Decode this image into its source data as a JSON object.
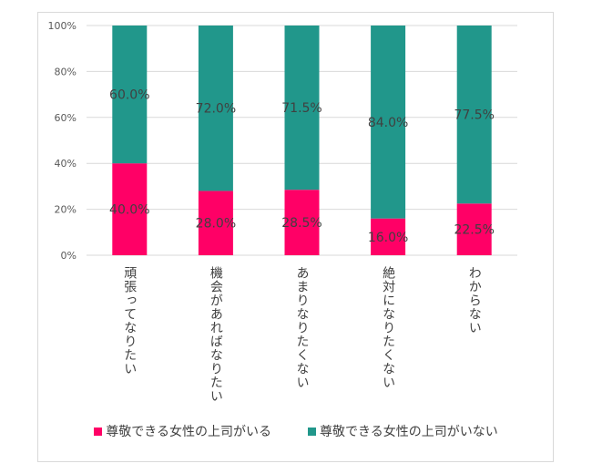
{
  "chart_data": {
    "type": "bar",
    "stacked": true,
    "percent": true,
    "categories": [
      "頑張ってなりたい",
      "機会があればなりたい",
      "あまりなりたくない",
      "絶対になりたくない",
      "わからない"
    ],
    "series": [
      {
        "name": "尊敬できる女性の上司がいる",
        "values": [
          40.0,
          28.0,
          28.5,
          16.0,
          22.5
        ],
        "labels": [
          "40.0%",
          "28.0%",
          "28.5%",
          "16.0%",
          "22.5%"
        ],
        "color": "#ff0066"
      },
      {
        "name": "尊敬できる女性の上司がいない",
        "values": [
          60.0,
          72.0,
          71.5,
          84.0,
          77.5
        ],
        "labels": [
          "60.0%",
          "72.0%",
          "71.5%",
          "84.0%",
          "77.5%"
        ],
        "color": "#21978b"
      }
    ],
    "yticks": [
      "0%",
      "20%",
      "40%",
      "60%",
      "80%",
      "100%"
    ],
    "ylim": [
      0,
      100
    ],
    "grid": true,
    "legend": "bottom"
  }
}
